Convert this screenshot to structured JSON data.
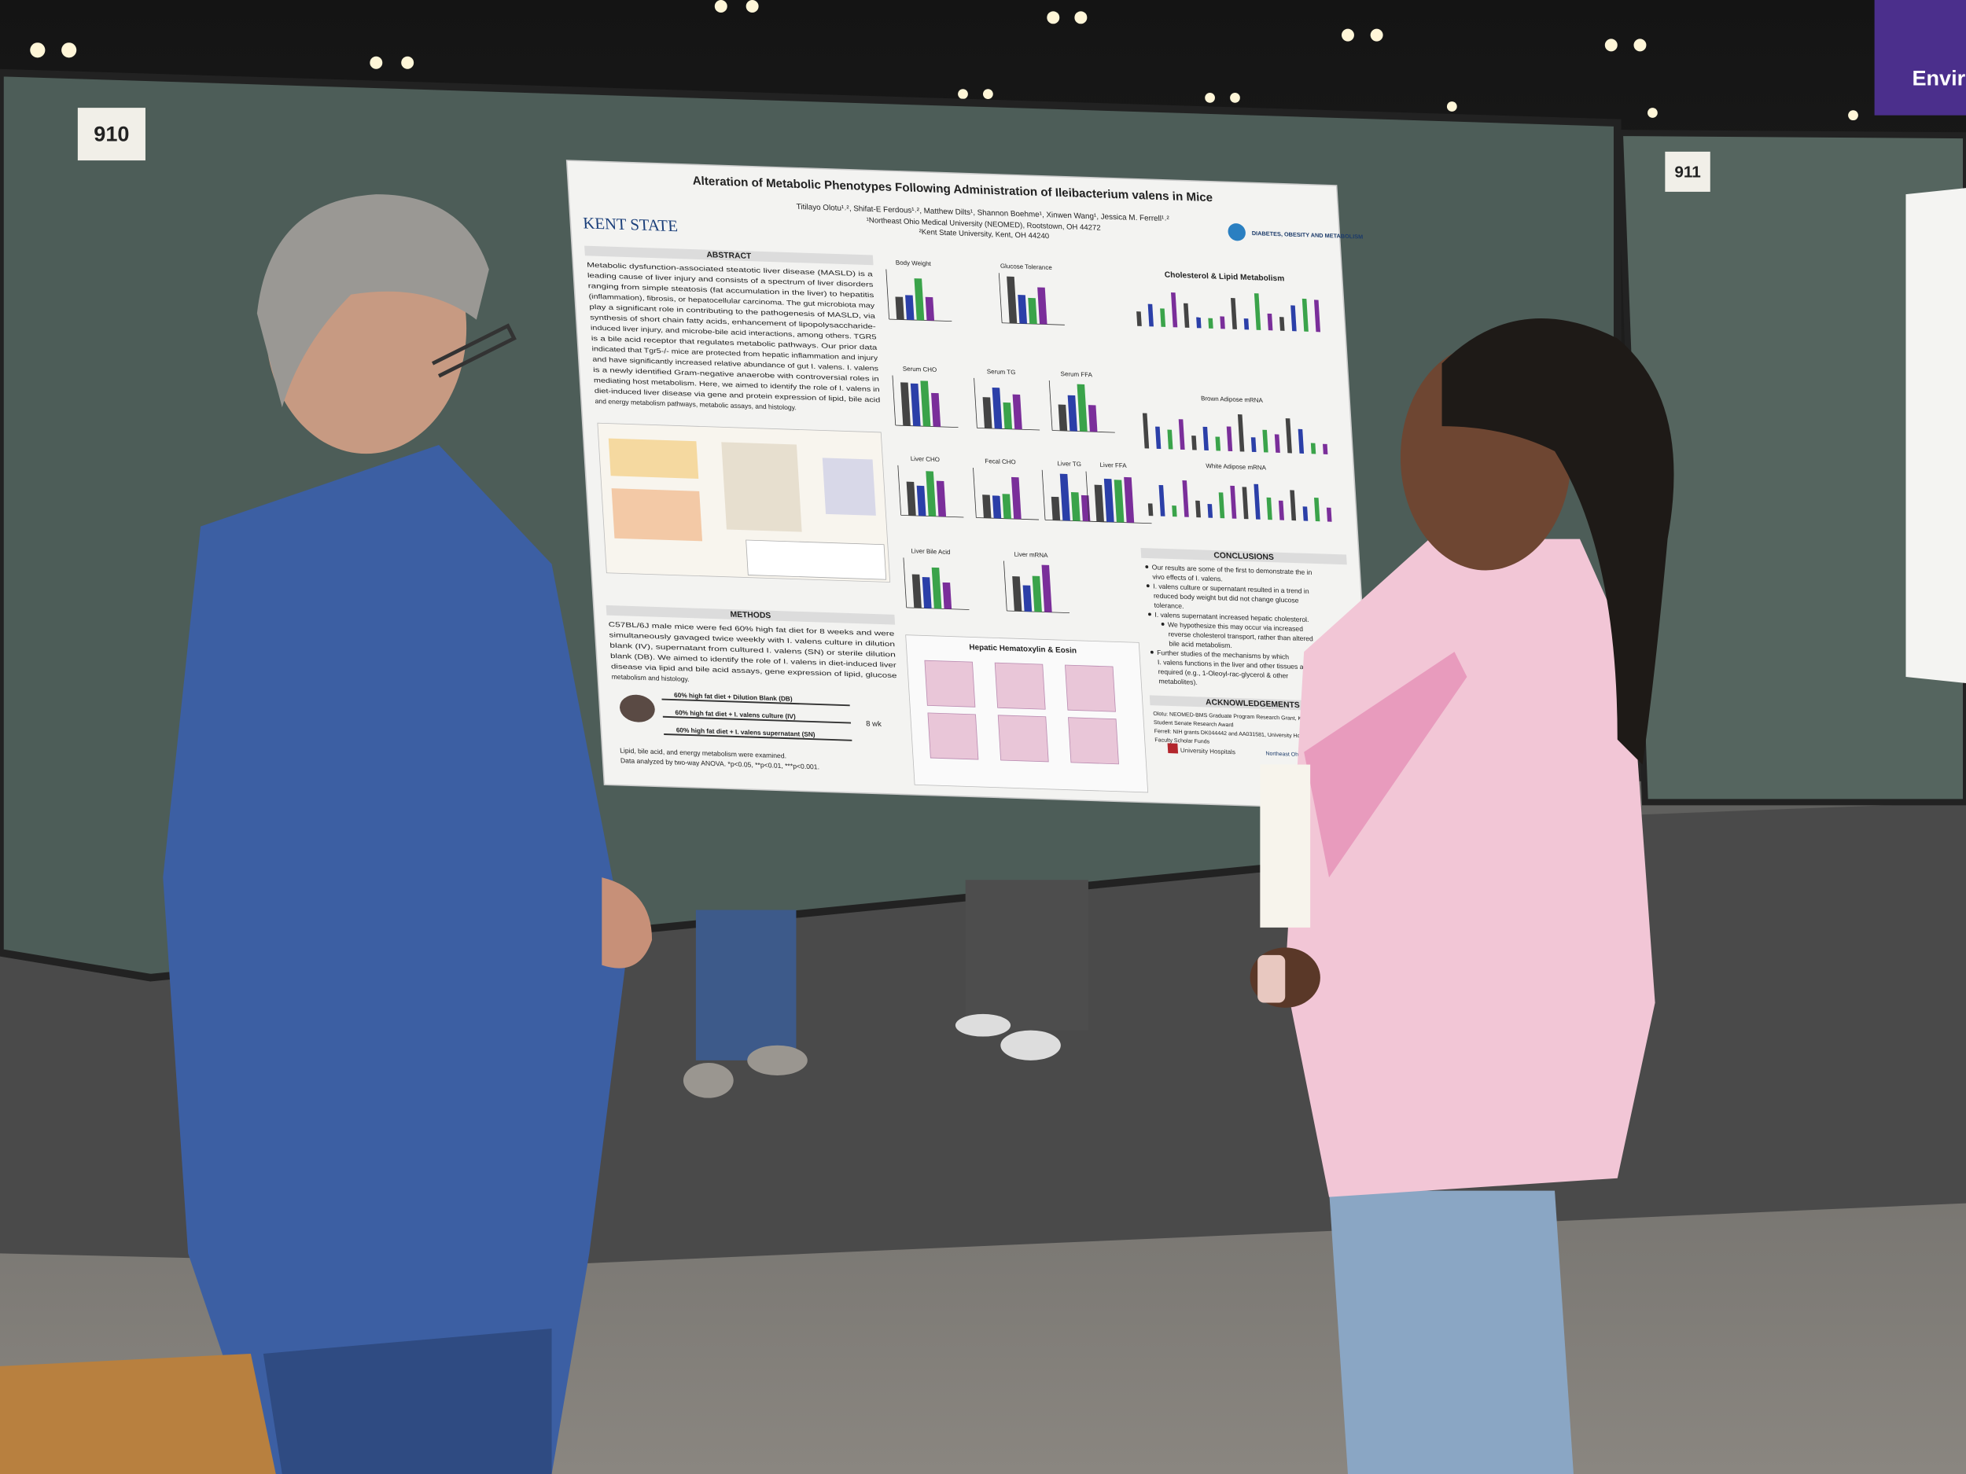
{
  "booth_numbers": {
    "left": "910",
    "right": "911"
  },
  "banner": "Enviro",
  "poster": {
    "title": "Alteration of Metabolic Phenotypes Following Administration of Ileibacterium valens in Mice",
    "authors": "Titilayo Olotu¹˒², Shifat-E Ferdous¹˒², Matthew Dilts¹, Shannon Boehme¹, Xinwen Wang¹, Jessica M. Ferrell¹˒²",
    "affiliations": [
      "¹Northeast Ohio Medical University (NEOMED), Rootstown, OH 44272",
      "²Kent State University, Kent, OH 44240"
    ],
    "logos": {
      "left": "KENT STATE",
      "right": "DIABETES, OBESITY AND METABOLISM",
      "bottom_left": "University Hospitals",
      "bottom_right": "Northeast Ohio Medical University"
    },
    "abstract": {
      "heading": "ABSTRACT",
      "lines": [
        "Metabolic dysfunction-associated steatotic liver disease (MASLD) is a",
        "leading cause of liver injury and consists of a spectrum of liver disorders",
        "ranging from simple steatosis (fat accumulation in the liver) to hepatitis",
        "(inflammation), fibrosis, or hepatocellular carcinoma. The gut microbiota may",
        "play a significant role in contributing to the pathogenesis of MASLD, via",
        "synthesis of short chain fatty acids, enhancement of lipopolysaccharide-",
        "induced liver injury, and microbe-bile acid interactions, among others. TGR5",
        "is a bile acid receptor that regulates metabolic pathways. Our prior data",
        "indicated that Tgr5-/- mice are protected from hepatic inflammation and injury",
        "and have significantly increased relative abundance of gut I. valens. I. valens",
        "is a newly identified Gram-negative anaerobe with controversial roles in",
        "mediating host metabolism. Here, we aimed to identify the role of I. valens in",
        "diet-induced liver disease via gene and protein expression of lipid, bile acid",
        "and energy metabolism pathways, metabolic assays, and histology."
      ]
    },
    "methods": {
      "heading": "METHODS",
      "lines": [
        "C57BL/6J male mice were fed 60% high fat diet for 8 weeks and were",
        "simultaneously gavaged twice weekly with I. valens culture in dilution",
        "blank (IV), supernatant from cultured I. valens (SN) or sterile dilution",
        "blank (DB). We aimed to identify the role of I. valens in diet-induced liver",
        "disease via lipid and bile acid assays, gene expression of lipid, glucose",
        "metabolism and histology."
      ],
      "groups": [
        "60% high fat diet + Dilution Blank (DB)",
        "60% high fat diet + I. valens culture (IV)",
        "60% high fat diet + I. valens supernatant (SN)"
      ],
      "duration": "8 wk",
      "notes": [
        "Lipid, bile acid, and energy metabolism were examined.",
        "Data analyzed by two-way ANOVA. *p<0.05, **p<0.01, ***p<0.001."
      ]
    },
    "panels": [
      "Body Weight",
      "Glucose Tolerance",
      "Serum CHO",
      "Serum TG",
      "Serum FFA",
      "Liver CHO",
      "Fecal CHO",
      "Liver TG",
      "Liver FFA",
      "Liver Bile Acid",
      "Liver mRNA"
    ],
    "histology_heading": "Hepatic Hematoxylin & Eosin",
    "right_panels": [
      "Cholesterol & Lipid Metabolism",
      "Brown Adipose mRNA",
      "White Adipose mRNA"
    ],
    "conclusions": {
      "heading": "CONCLUSIONS",
      "bullets": [
        [
          "Our results are some of the first to demonstrate the in",
          "vivo effects of I. valens."
        ],
        [
          "I. valens culture or supernatant resulted in a trend in",
          "reduced body weight but did not change glucose",
          "tolerance."
        ],
        [
          "I. valens supernatant increased hepatic cholesterol."
        ],
        [
          "We hypothesize this may occur via increased",
          "reverse cholesterol transport, rather than altered",
          "bile acid metabolism."
        ],
        [
          "Further studies of the mechanisms by which",
          "I. valens functions in the liver and other tissues are",
          "required (e.g., 1-Oleoyl-rac-glycerol & other",
          "metabolites)."
        ]
      ]
    },
    "acknowledgements": {
      "heading": "ACKNOWLEDGEMENTS",
      "lines": [
        "Olotu: NEOMED-BMS Graduate Program Research Grant, KSU Graduate",
        "Student Senate Research Award",
        "Ferrell: NIH grants DK044442 and AA031581, University Hospitals/NEOMED",
        "Faculty Scholar Funds"
      ]
    }
  }
}
